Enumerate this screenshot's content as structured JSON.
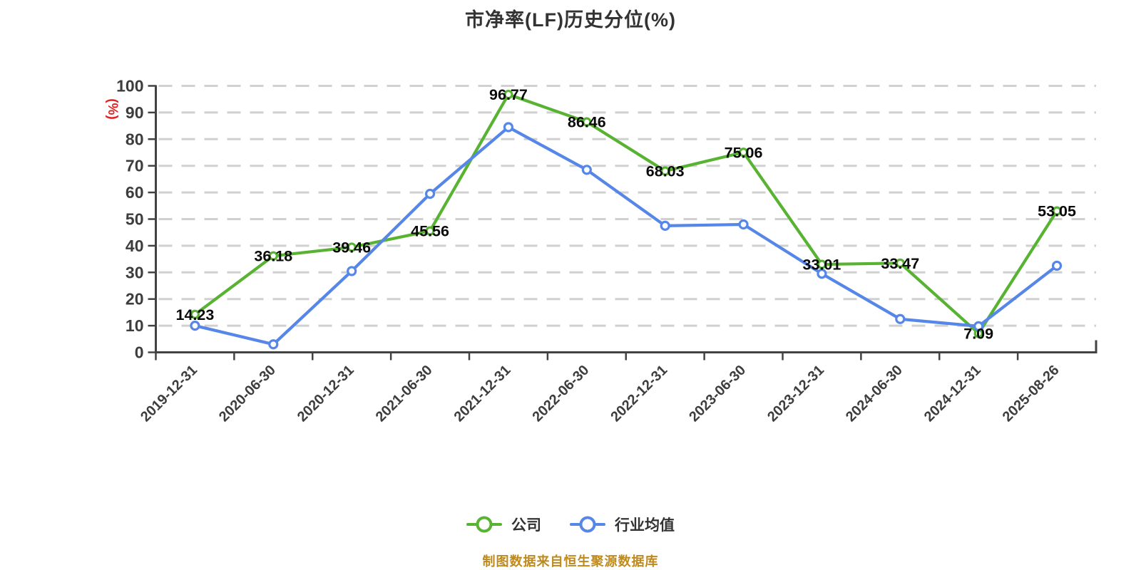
{
  "title": "市净率(LF)历史分位(%)",
  "footer": "制图数据来自恒生聚源数据库",
  "colors": {
    "title": "#333333",
    "company_series": "#58B332",
    "industry_series": "#5687E8",
    "grid": "#D0D0D0",
    "axis": "#424242",
    "tick_label": "#3D3D3D",
    "point_label": "#0A0A0A",
    "y_unit_label": "#E02222",
    "footer": "#BE8A1E",
    "marker_fill": "#FFFFFF"
  },
  "chart_data": {
    "type": "line",
    "title": "市净率(LF)历史分位(%)",
    "xlabel": "",
    "ylabel": "(%)",
    "ylim": [
      0,
      100
    ],
    "ytick_step": 10,
    "grid": "horizontal-dashed",
    "legend_position": "bottom-center",
    "categories": [
      "2019-12-31",
      "2020-06-30",
      "2020-12-31",
      "2021-06-30",
      "2021-12-31",
      "2022-06-30",
      "2022-12-31",
      "2023-06-30",
      "2023-12-31",
      "2024-06-30",
      "2024-12-31",
      "2025-08-26"
    ],
    "series": [
      {
        "name": "公司",
        "color": "#58B332",
        "labels_shown": true,
        "values": [
          14.23,
          36.18,
          39.46,
          45.56,
          96.77,
          86.46,
          68.03,
          75.06,
          33.01,
          33.47,
          7.09,
          53.05
        ]
      },
      {
        "name": "行业均值",
        "color": "#5687E8",
        "labels_shown": false,
        "values": [
          10,
          3,
          30.5,
          59.5,
          84.5,
          68.5,
          47.5,
          48,
          29.5,
          12.5,
          9.8,
          32.5
        ]
      }
    ]
  }
}
